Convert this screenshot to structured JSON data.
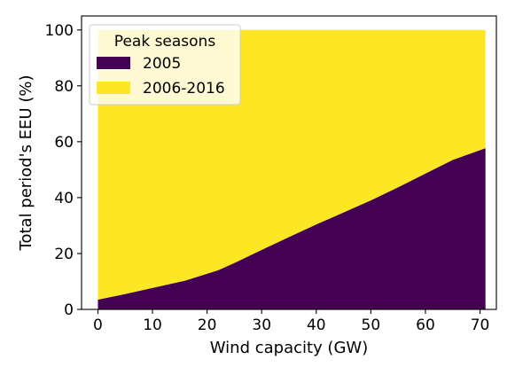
{
  "chart_data": {
    "type": "area",
    "xlabel": "Wind capacity (GW)",
    "ylabel": "Total period's EEU (%)",
    "xlim": [
      -3,
      73
    ],
    "ylim": [
      0,
      105
    ],
    "xticks": [
      0,
      10,
      20,
      30,
      40,
      50,
      60,
      70
    ],
    "yticks": [
      0,
      20,
      40,
      60,
      80,
      100
    ],
    "stacked": true,
    "grid": false,
    "x": [
      0,
      5,
      10,
      16,
      22,
      25,
      30,
      35,
      40,
      45,
      50,
      55,
      60,
      65,
      71
    ],
    "series": [
      {
        "name": "2005",
        "color": "#440154",
        "values": [
          3.5,
          5.5,
          7.7,
          10.3,
          14.0,
          16.6,
          21.3,
          25.9,
          30.4,
          34.7,
          39.0,
          43.7,
          48.6,
          53.5,
          57.7
        ]
      },
      {
        "name": "2006-2016",
        "color": "#fde725",
        "values": [
          96.5,
          94.5,
          92.3,
          89.7,
          86.0,
          83.4,
          78.7,
          74.1,
          69.6,
          65.3,
          61.0,
          56.3,
          51.4,
          46.5,
          42.3
        ]
      }
    ],
    "legend": {
      "title": "Peak seasons",
      "placement": "top-left"
    }
  }
}
